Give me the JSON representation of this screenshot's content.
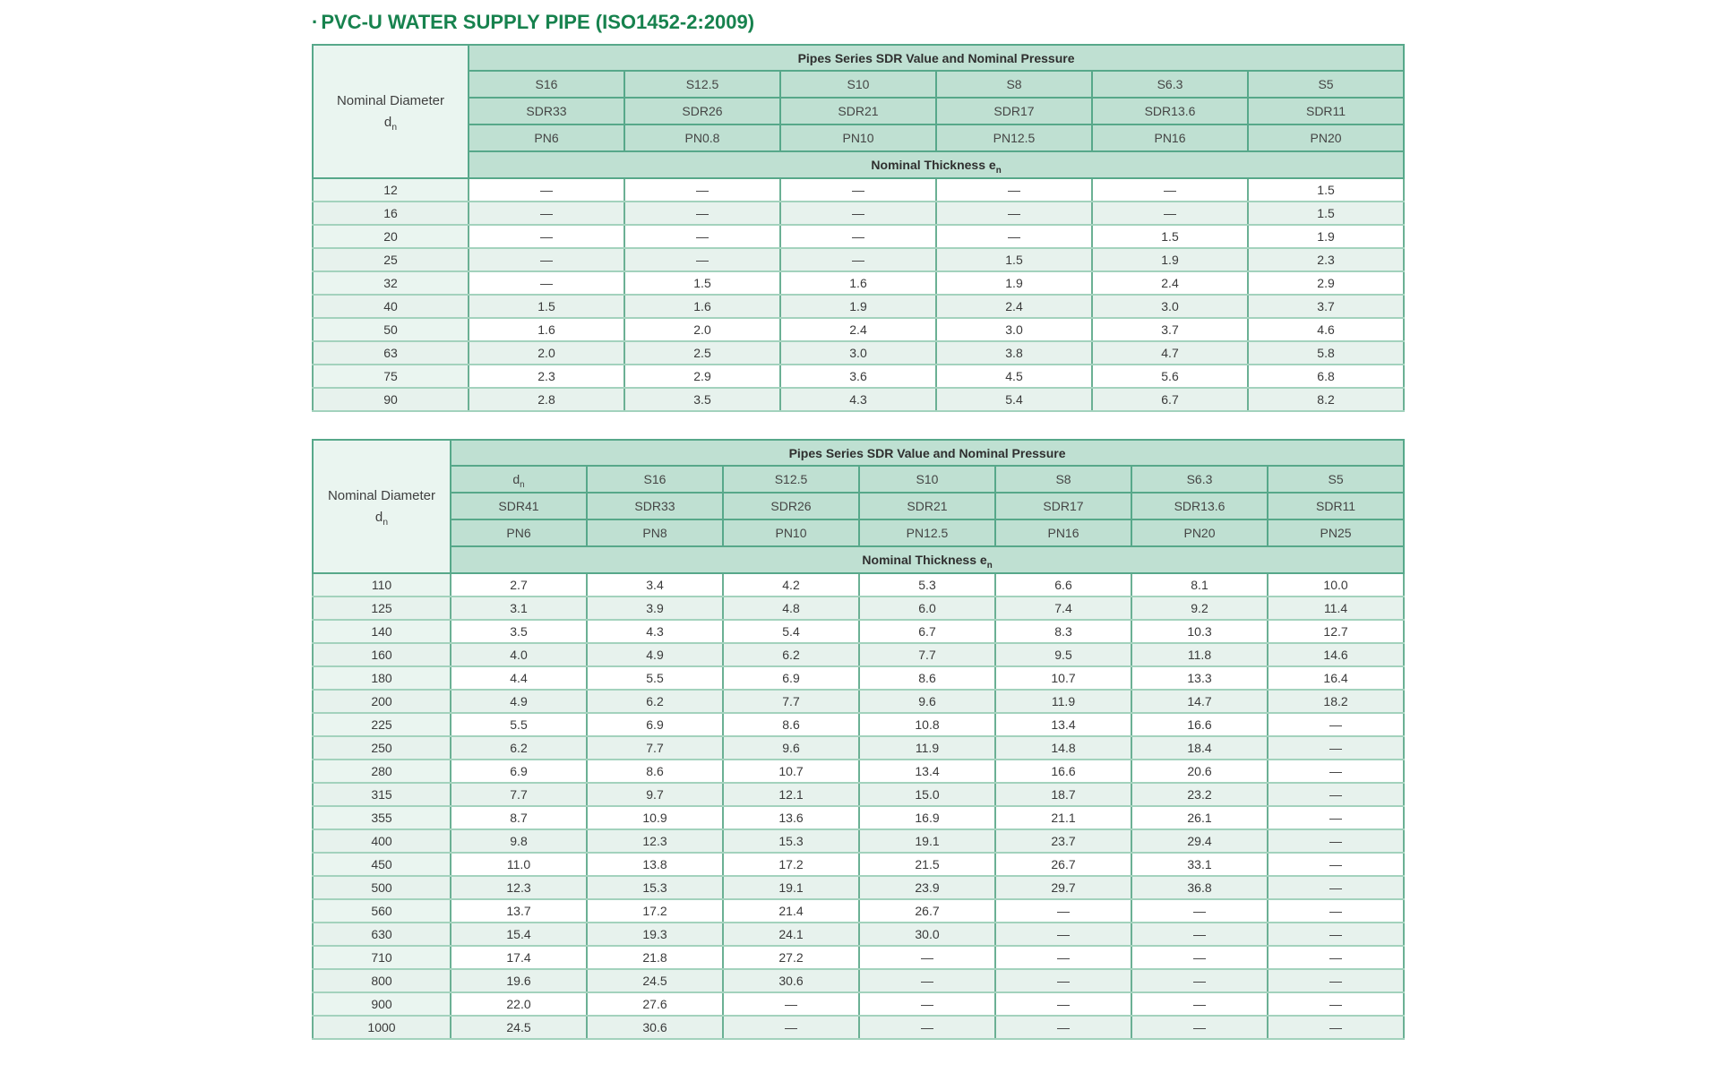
{
  "title": {
    "bullet": "·",
    "text": "PVC-U WATER SUPPLY PIPE (ISO1452-2:2009)"
  },
  "colors": {
    "title_green": "#17824e",
    "header_bg": "#bfe0d2",
    "pale_bg": "#eaf5f0",
    "stripe_bg": "#e7f2ed",
    "border_dark": "#57a88a",
    "border_mid": "#6bb094",
    "border_light": "#a3d2bd"
  },
  "tables": [
    {
      "name": "pipe-table-small-diameters",
      "corner": [
        "Nominal Diameter",
        "d[n]"
      ],
      "span_header": "Pipes Series SDR Value and Nominal Pressure",
      "header_rows": [
        [
          "S16",
          "S12.5",
          "S10",
          "S8",
          "S6.3",
          "S5"
        ],
        [
          "SDR33",
          "SDR26",
          "SDR21",
          "SDR17",
          "SDR13.6",
          "SDR11"
        ],
        [
          "PN6",
          "PN0.8",
          "PN10",
          "PN12.5",
          "PN16",
          "PN20"
        ]
      ],
      "thickness_label": "Nominal Thickness e[n]",
      "rows": [
        [
          "12",
          "—",
          "—",
          "—",
          "—",
          "—",
          "1.5"
        ],
        [
          "16",
          "—",
          "—",
          "—",
          "—",
          "—",
          "1.5"
        ],
        [
          "20",
          "—",
          "—",
          "—",
          "—",
          "1.5",
          "1.9"
        ],
        [
          "25",
          "—",
          "—",
          "—",
          "1.5",
          "1.9",
          "2.3"
        ],
        [
          "32",
          "—",
          "1.5",
          "1.6",
          "1.9",
          "2.4",
          "2.9"
        ],
        [
          "40",
          "1.5",
          "1.6",
          "1.9",
          "2.4",
          "3.0",
          "3.7"
        ],
        [
          "50",
          "1.6",
          "2.0",
          "2.4",
          "3.0",
          "3.7",
          "4.6"
        ],
        [
          "63",
          "2.0",
          "2.5",
          "3.0",
          "3.8",
          "4.7",
          "5.8"
        ],
        [
          "75",
          "2.3",
          "2.9",
          "3.6",
          "4.5",
          "5.6",
          "6.8"
        ],
        [
          "90",
          "2.8",
          "3.5",
          "4.3",
          "5.4",
          "6.7",
          "8.2"
        ]
      ]
    },
    {
      "name": "pipe-table-large-diameters",
      "corner": [
        "Nominal Diameter",
        "d[n]"
      ],
      "span_header": "Pipes Series SDR Value and Nominal Pressure",
      "header_rows": [
        [
          "d[n]",
          "S16",
          "S12.5",
          "S10",
          "S8",
          "S6.3",
          "S5"
        ],
        [
          "SDR41",
          "SDR33",
          "SDR26",
          "SDR21",
          "SDR17",
          "SDR13.6",
          "SDR11"
        ],
        [
          "PN6",
          "PN8",
          "PN10",
          "PN12.5",
          "PN16",
          "PN20",
          "PN25"
        ]
      ],
      "thickness_label": "Nominal Thickness e[n]",
      "rows": [
        [
          "110",
          "2.7",
          "3.4",
          "4.2",
          "5.3",
          "6.6",
          "8.1",
          "10.0"
        ],
        [
          "125",
          "3.1",
          "3.9",
          "4.8",
          "6.0",
          "7.4",
          "9.2",
          "11.4"
        ],
        [
          "140",
          "3.5",
          "4.3",
          "5.4",
          "6.7",
          "8.3",
          "10.3",
          "12.7"
        ],
        [
          "160",
          "4.0",
          "4.9",
          "6.2",
          "7.7",
          "9.5",
          "11.8",
          "14.6"
        ],
        [
          "180",
          "4.4",
          "5.5",
          "6.9",
          "8.6",
          "10.7",
          "13.3",
          "16.4"
        ],
        [
          "200",
          "4.9",
          "6.2",
          "7.7",
          "9.6",
          "11.9",
          "14.7",
          "18.2"
        ],
        [
          "225",
          "5.5",
          "6.9",
          "8.6",
          "10.8",
          "13.4",
          "16.6",
          "—"
        ],
        [
          "250",
          "6.2",
          "7.7",
          "9.6",
          "11.9",
          "14.8",
          "18.4",
          "—"
        ],
        [
          "280",
          "6.9",
          "8.6",
          "10.7",
          "13.4",
          "16.6",
          "20.6",
          "—"
        ],
        [
          "315",
          "7.7",
          "9.7",
          "12.1",
          "15.0",
          "18.7",
          "23.2",
          "—"
        ],
        [
          "355",
          "8.7",
          "10.9",
          "13.6",
          "16.9",
          "21.1",
          "26.1",
          "—"
        ],
        [
          "400",
          "9.8",
          "12.3",
          "15.3",
          "19.1",
          "23.7",
          "29.4",
          "—"
        ],
        [
          "450",
          "11.0",
          "13.8",
          "17.2",
          "21.5",
          "26.7",
          "33.1",
          "—"
        ],
        [
          "500",
          "12.3",
          "15.3",
          "19.1",
          "23.9",
          "29.7",
          "36.8",
          "—"
        ],
        [
          "560",
          "13.7",
          "17.2",
          "21.4",
          "26.7",
          "—",
          "—",
          "—"
        ],
        [
          "630",
          "15.4",
          "19.3",
          "24.1",
          "30.0",
          "—",
          "—",
          "—"
        ],
        [
          "710",
          "17.4",
          "21.8",
          "27.2",
          "—",
          "—",
          "—",
          "—"
        ],
        [
          "800",
          "19.6",
          "24.5",
          "30.6",
          "—",
          "—",
          "—",
          "—"
        ],
        [
          "900",
          "22.0",
          "27.6",
          "—",
          "—",
          "—",
          "—",
          "—"
        ],
        [
          "1000",
          "24.5",
          "30.6",
          "—",
          "—",
          "—",
          "—",
          "—"
        ]
      ]
    }
  ]
}
